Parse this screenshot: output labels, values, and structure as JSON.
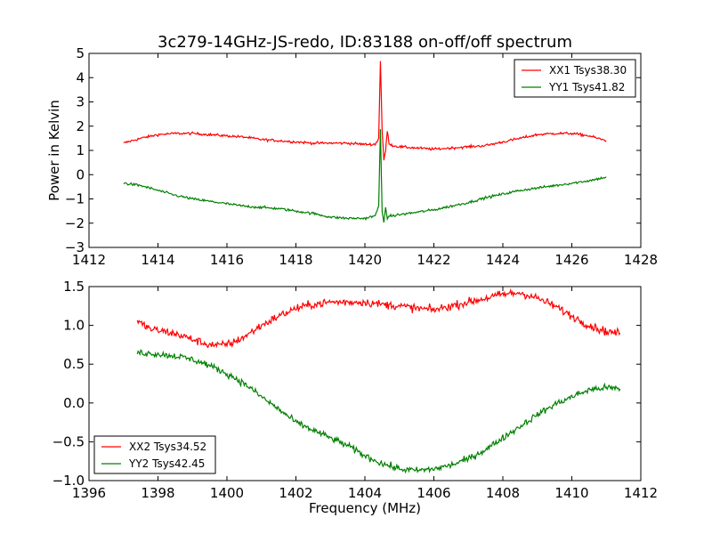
{
  "figure": {
    "title": "3c279-14GHz-JS-redo, ID:83188 on-off/off spectrum"
  },
  "chart_data": [
    {
      "type": "line",
      "xlabel": "",
      "ylabel": "Power in Kelvin",
      "xlim": [
        1412,
        1428
      ],
      "ylim": [
        -3,
        5
      ],
      "xticks": [
        1412,
        1414,
        1416,
        1418,
        1420,
        1422,
        1424,
        1426,
        1428
      ],
      "yticks": [
        -3,
        -2,
        -1,
        0,
        1,
        2,
        3,
        4,
        5
      ],
      "xtick_labels": [
        "1412",
        "1414",
        "1416",
        "1418",
        "1420",
        "1422",
        "1424",
        "1426",
        "1428"
      ],
      "ytick_labels": [
        "−3",
        "−2",
        "−1",
        "0",
        "1",
        "2",
        "3",
        "4",
        "5"
      ],
      "grid": false,
      "legend_position": "top-right",
      "series": [
        {
          "name": "XX1 Tsys38.30",
          "color": "#ff0000",
          "noise": 0.05,
          "x": [
            1413.0,
            1413.5,
            1414.0,
            1414.5,
            1415.0,
            1415.5,
            1416.0,
            1416.5,
            1417.0,
            1417.5,
            1418.0,
            1418.5,
            1419.0,
            1419.5,
            1420.0,
            1420.3,
            1420.4,
            1420.45,
            1420.5,
            1420.55,
            1420.6,
            1420.65,
            1420.7,
            1420.8,
            1421.0,
            1421.5,
            1422.0,
            1422.5,
            1423.0,
            1423.5,
            1424.0,
            1424.5,
            1425.0,
            1425.5,
            1426.0,
            1426.5,
            1427.0
          ],
          "y": [
            1.3,
            1.5,
            1.65,
            1.7,
            1.7,
            1.65,
            1.6,
            1.55,
            1.45,
            1.4,
            1.35,
            1.3,
            1.3,
            1.3,
            1.25,
            1.25,
            1.5,
            4.7,
            1.8,
            0.6,
            1.0,
            1.8,
            1.3,
            1.2,
            1.15,
            1.1,
            1.05,
            1.1,
            1.15,
            1.2,
            1.35,
            1.5,
            1.65,
            1.7,
            1.7,
            1.6,
            1.4
          ]
        },
        {
          "name": "YY1 Tsys41.82",
          "color": "#008000",
          "noise": 0.05,
          "x": [
            1413.0,
            1413.5,
            1414.0,
            1414.5,
            1415.0,
            1415.5,
            1416.0,
            1416.5,
            1417.0,
            1417.5,
            1418.0,
            1418.5,
            1419.0,
            1419.5,
            1420.0,
            1420.3,
            1420.4,
            1420.45,
            1420.5,
            1420.55,
            1420.6,
            1420.65,
            1420.7,
            1420.8,
            1421.0,
            1421.5,
            1422.0,
            1422.5,
            1423.0,
            1423.5,
            1424.0,
            1424.5,
            1425.0,
            1425.5,
            1426.0,
            1426.5,
            1427.0
          ],
          "y": [
            -0.35,
            -0.45,
            -0.65,
            -0.85,
            -1.0,
            -1.1,
            -1.2,
            -1.3,
            -1.35,
            -1.4,
            -1.5,
            -1.6,
            -1.75,
            -1.8,
            -1.8,
            -1.7,
            -1.3,
            1.9,
            -1.5,
            -2.0,
            -1.4,
            -1.8,
            -1.7,
            -1.7,
            -1.65,
            -1.55,
            -1.45,
            -1.3,
            -1.15,
            -0.95,
            -0.8,
            -0.65,
            -0.55,
            -0.45,
            -0.35,
            -0.25,
            -0.1
          ]
        }
      ]
    },
    {
      "type": "line",
      "xlabel": "Frequency (MHz)",
      "ylabel": "",
      "xlim": [
        1396,
        1412
      ],
      "ylim": [
        -1.0,
        1.5
      ],
      "xticks": [
        1396,
        1398,
        1400,
        1402,
        1404,
        1406,
        1408,
        1410,
        1412
      ],
      "yticks": [
        -1.0,
        -0.5,
        0.0,
        0.5,
        1.0,
        1.5
      ],
      "xtick_labels": [
        "1396",
        "1398",
        "1400",
        "1402",
        "1404",
        "1406",
        "1408",
        "1410",
        "1412"
      ],
      "ytick_labels": [
        "−1.0",
        "−0.5",
        "0.0",
        "0.5",
        "1.0",
        "1.5"
      ],
      "grid": false,
      "legend_position": "bottom-left",
      "series": [
        {
          "name": "XX2 Tsys34.52",
          "color": "#ff0000",
          "noise": 0.05,
          "x": [
            1397.4,
            1397.8,
            1398.2,
            1398.6,
            1399.0,
            1399.4,
            1399.8,
            1400.2,
            1400.6,
            1401.0,
            1401.5,
            1402.0,
            1402.5,
            1403.0,
            1403.5,
            1404.0,
            1404.5,
            1405.0,
            1405.5,
            1406.0,
            1406.5,
            1407.0,
            1407.5,
            1408.0,
            1408.5,
            1409.0,
            1409.5,
            1410.0,
            1410.5,
            1411.0,
            1411.4
          ],
          "y": [
            1.05,
            0.95,
            0.92,
            0.88,
            0.82,
            0.76,
            0.74,
            0.78,
            0.88,
            1.0,
            1.12,
            1.22,
            1.27,
            1.3,
            1.3,
            1.3,
            1.27,
            1.25,
            1.22,
            1.2,
            1.25,
            1.3,
            1.35,
            1.4,
            1.42,
            1.35,
            1.25,
            1.12,
            1.0,
            0.92,
            0.9
          ]
        },
        {
          "name": "YY2 Tsys42.45",
          "color": "#008000",
          "noise": 0.04,
          "x": [
            1397.4,
            1397.8,
            1398.2,
            1398.6,
            1399.0,
            1399.4,
            1399.8,
            1400.2,
            1400.6,
            1401.0,
            1401.5,
            1402.0,
            1402.5,
            1403.0,
            1403.5,
            1404.0,
            1404.5,
            1405.0,
            1405.5,
            1406.0,
            1406.5,
            1407.0,
            1407.5,
            1408.0,
            1408.5,
            1409.0,
            1409.5,
            1410.0,
            1410.5,
            1411.0,
            1411.4
          ],
          "y": [
            0.65,
            0.64,
            0.62,
            0.6,
            0.56,
            0.5,
            0.42,
            0.33,
            0.22,
            0.08,
            -0.08,
            -0.25,
            -0.35,
            -0.45,
            -0.55,
            -0.68,
            -0.78,
            -0.85,
            -0.87,
            -0.85,
            -0.8,
            -0.72,
            -0.6,
            -0.45,
            -0.3,
            -0.15,
            -0.02,
            0.08,
            0.17,
            0.2,
            0.18
          ]
        }
      ]
    }
  ]
}
